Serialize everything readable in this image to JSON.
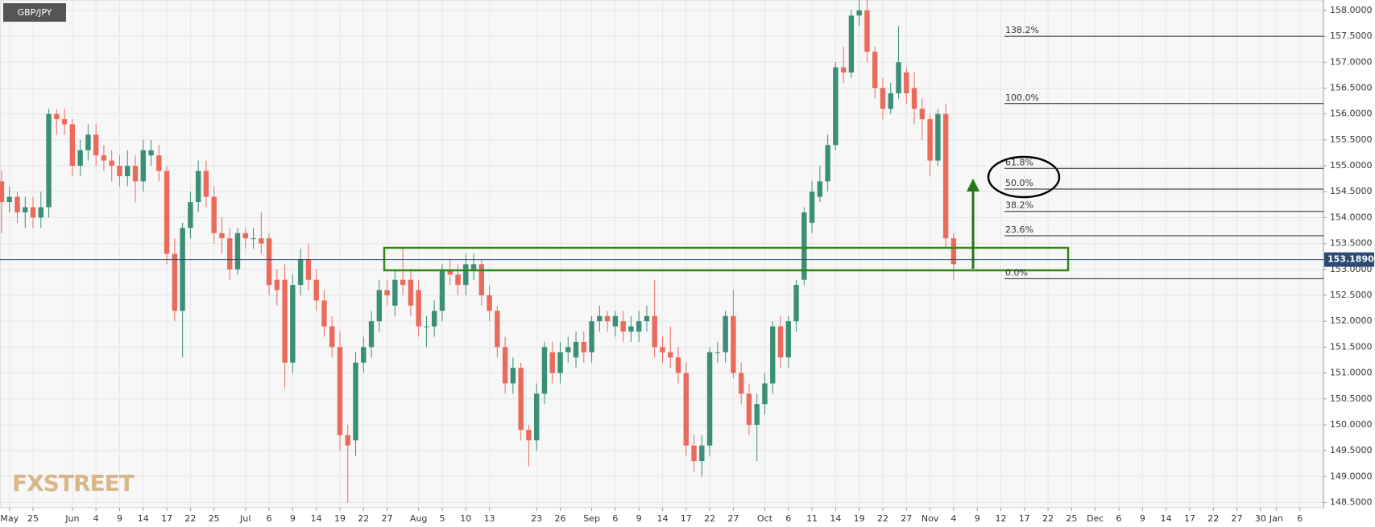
{
  "chart_data": {
    "type": "candlestick",
    "title": "GBP/JPY",
    "watermark": "FXSTREET",
    "up_color": "#3b8f77",
    "down_color": "#ea6a5c",
    "grid": true,
    "xlim": [
      -0.2,
      168
    ],
    "xticks": [
      {
        "value": 1,
        "label": "May"
      },
      {
        "value": 4,
        "label": "25"
      },
      {
        "value": 9,
        "label": "Jun"
      },
      {
        "value": 12,
        "label": "4"
      },
      {
        "value": 15,
        "label": "9"
      },
      {
        "value": 18,
        "label": "14"
      },
      {
        "value": 21,
        "label": "17"
      },
      {
        "value": 24,
        "label": "22"
      },
      {
        "value": 27,
        "label": "25"
      },
      {
        "value": 31,
        "label": "Jul"
      },
      {
        "value": 34,
        "label": "6"
      },
      {
        "value": 37,
        "label": "9"
      },
      {
        "value": 40,
        "label": "14"
      },
      {
        "value": 43,
        "label": "19"
      },
      {
        "value": 46,
        "label": "22"
      },
      {
        "value": 49,
        "label": "27"
      },
      {
        "value": 53,
        "label": "Aug"
      },
      {
        "value": 56,
        "label": "5"
      },
      {
        "value": 59,
        "label": "10"
      },
      {
        "value": 62,
        "label": "13"
      },
      {
        "value": 68,
        "label": "23"
      },
      {
        "value": 71,
        "label": "26"
      },
      {
        "value": 75,
        "label": "Sep"
      },
      {
        "value": 78,
        "label": "6"
      },
      {
        "value": 81,
        "label": "9"
      },
      {
        "value": 84,
        "label": "14"
      },
      {
        "value": 87,
        "label": "17"
      },
      {
        "value": 90,
        "label": "22"
      },
      {
        "value": 93,
        "label": "27"
      },
      {
        "value": 97,
        "label": "Oct"
      },
      {
        "value": 100,
        "label": "6"
      },
      {
        "value": 103,
        "label": "11"
      },
      {
        "value": 106,
        "label": "14"
      },
      {
        "value": 109,
        "label": "19"
      },
      {
        "value": 112,
        "label": "22"
      },
      {
        "value": 115,
        "label": "27"
      },
      {
        "value": 118,
        "label": "Nov"
      },
      {
        "value": 121,
        "label": "4"
      },
      {
        "value": 124,
        "label": "9"
      },
      {
        "value": 127,
        "label": "12"
      },
      {
        "value": 130,
        "label": "17"
      },
      {
        "value": 133,
        "label": "22"
      },
      {
        "value": 136,
        "label": "25"
      },
      {
        "value": 139,
        "label": "Dec"
      },
      {
        "value": 142,
        "label": "6"
      },
      {
        "value": 145,
        "label": "9"
      },
      {
        "value": 148,
        "label": "14"
      },
      {
        "value": 151,
        "label": "17"
      },
      {
        "value": 154,
        "label": "22"
      },
      {
        "value": 157,
        "label": "27"
      },
      {
        "value": 160,
        "label": "30"
      },
      {
        "value": 162,
        "label": "Jan"
      },
      {
        "value": 165,
        "label": "6"
      }
    ],
    "ylim": [
      148.4,
      158.2
    ],
    "yticks": [
      {
        "value": 148.5,
        "label": "148.5000"
      },
      {
        "value": 149,
        "label": "149.0000"
      },
      {
        "value": 149.5,
        "label": "149.5000"
      },
      {
        "value": 150,
        "label": "150.0000"
      },
      {
        "value": 150.5,
        "label": "150.5000"
      },
      {
        "value": 151,
        "label": "151.0000"
      },
      {
        "value": 151.5,
        "label": "151.5000"
      },
      {
        "value": 152,
        "label": "152.0000"
      },
      {
        "value": 152.5,
        "label": "152.5000"
      },
      {
        "value": 153,
        "label": "153.0000"
      },
      {
        "value": 153.5,
        "label": "153.5000"
      },
      {
        "value": 154,
        "label": "154.0000"
      },
      {
        "value": 154.5,
        "label": "154.5000"
      },
      {
        "value": 155,
        "label": "155.0000"
      },
      {
        "value": 155.5,
        "label": "155.5000"
      },
      {
        "value": 156,
        "label": "156.0000"
      },
      {
        "value": 156.5,
        "label": "156.5000"
      },
      {
        "value": 157,
        "label": "157.0000"
      },
      {
        "value": 157.5,
        "label": "157.5000"
      },
      {
        "value": 158,
        "label": "158.0000"
      }
    ],
    "current_price": {
      "value": 153.189,
      "label": "153.1890"
    },
    "fib_levels": [
      {
        "label": "138.2%",
        "value": 157.5
      },
      {
        "label": "100.0%",
        "value": 156.2
      },
      {
        "label": "61.8%",
        "value": 154.95
      },
      {
        "label": "50.0%",
        "value": 154.55
      },
      {
        "label": "38.2%",
        "value": 154.12
      },
      {
        "label": "23.6%",
        "value": 153.65
      },
      {
        "label": "0.0%",
        "value": 152.82
      }
    ],
    "open": [
      154.7,
      154.3,
      154.4,
      154.1,
      154.2,
      154.0,
      154.2,
      156.0,
      155.9,
      155.8,
      155.0,
      155.3,
      155.6,
      155.2,
      155.1,
      155.0,
      154.8,
      155.0,
      154.7,
      155.2,
      155.2,
      154.9,
      153.3,
      152.2,
      153.8,
      154.3,
      154.9,
      154.4,
      153.7,
      153.6,
      153.0,
      153.7,
      153.6,
      153.6,
      153.6,
      152.8,
      152.8,
      151.2,
      152.7,
      153.2,
      152.8,
      152.4,
      151.9,
      151.5,
      149.8,
      149.7,
      151.2,
      151.5,
      152.0,
      152.6,
      152.3,
      152.8,
      152.8,
      152.6,
      151.9,
      151.9,
      152.2,
      153.0,
      152.9,
      152.7,
      153.0,
      153.1,
      152.5,
      152.2,
      151.5,
      150.8,
      151.1,
      149.9,
      149.7,
      150.6,
      151.4,
      151.0,
      151.4,
      151.3,
      151.6,
      151.4,
      152.0,
      152.1,
      151.9,
      152.0,
      151.8,
      151.8,
      152.0,
      152.1,
      151.5,
      151.4,
      151.3,
      151.0,
      149.6,
      149.3,
      149.6,
      151.4,
      151.4,
      152.1,
      151.0,
      150.6,
      150.0,
      150.4,
      150.8,
      151.9,
      151.3,
      152.0,
      152.8,
      153.9,
      154.4,
      154.7,
      155.4,
      156.9,
      156.8,
      157.9,
      158.0,
      157.2,
      156.5,
      156.1,
      156.4,
      156.8,
      156.5,
      156.1,
      155.9,
      155.1,
      156.0,
      153.6
    ],
    "high": [
      154.9,
      154.6,
      154.5,
      154.4,
      154.4,
      154.5,
      156.1,
      156.1,
      156.1,
      155.9,
      155.5,
      155.8,
      155.8,
      155.4,
      155.3,
      155.2,
      155.3,
      155.2,
      155.5,
      155.5,
      155.4,
      155.0,
      153.6,
      153.9,
      154.5,
      155.1,
      155.1,
      154.6,
      154.0,
      153.8,
      153.8,
      153.8,
      153.8,
      154.1,
      153.7,
      153.0,
      153.1,
      152.9,
      153.4,
      153.5,
      153.0,
      152.6,
      152.1,
      151.8,
      150.0,
      151.4,
      151.7,
      152.2,
      152.8,
      152.8,
      153.0,
      153.4,
      153.0,
      152.8,
      152.1,
      152.4,
      153.1,
      153.2,
      153.1,
      153.3,
      153.3,
      153.2,
      152.7,
      152.3,
      151.7,
      151.3,
      151.2,
      150.0,
      150.8,
      151.6,
      151.6,
      151.6,
      151.7,
      151.8,
      151.8,
      152.1,
      152.3,
      152.2,
      152.2,
      152.2,
      152.1,
      152.2,
      152.3,
      152.8,
      151.7,
      151.9,
      151.5,
      151.2,
      149.8,
      149.8,
      151.5,
      151.6,
      152.2,
      152.6,
      151.2,
      150.8,
      150.6,
      151.0,
      152.0,
      152.1,
      152.1,
      152.8,
      154.2,
      154.7,
      155.0,
      155.6,
      157.0,
      157.3,
      158.0,
      158.2,
      158.2,
      157.3,
      156.7,
      156.6,
      157.7,
      156.9,
      156.8,
      156.3,
      156.0,
      156.1,
      156.2,
      153.7
    ],
    "low": [
      153.7,
      154.1,
      153.9,
      153.8,
      153.8,
      153.8,
      154.0,
      155.6,
      155.6,
      154.8,
      154.8,
      155.1,
      155.0,
      154.9,
      154.7,
      154.6,
      154.6,
      154.3,
      154.5,
      155.0,
      154.7,
      153.1,
      152.0,
      151.3,
      153.6,
      154.1,
      154.2,
      153.5,
      153.3,
      152.8,
      152.9,
      153.4,
      153.4,
      153.3,
      152.5,
      152.3,
      150.7,
      151.0,
      152.5,
      152.6,
      152.2,
      151.7,
      151.3,
      149.5,
      148.5,
      149.4,
      151.0,
      151.3,
      151.8,
      152.3,
      152.1,
      152.5,
      152.1,
      151.7,
      151.5,
      151.7,
      152.0,
      152.7,
      152.5,
      152.5,
      152.8,
      152.3,
      152.0,
      151.3,
      150.6,
      150.6,
      149.7,
      149.2,
      149.5,
      150.4,
      150.8,
      150.8,
      151.2,
      151.1,
      151.2,
      151.2,
      151.8,
      151.8,
      151.7,
      151.6,
      151.6,
      151.6,
      151.8,
      151.3,
      151.2,
      151.1,
      150.8,
      149.4,
      149.1,
      149.0,
      149.4,
      151.2,
      151.2,
      150.9,
      150.4,
      149.8,
      149.3,
      150.2,
      150.6,
      151.1,
      151.1,
      151.8,
      152.7,
      153.7,
      154.3,
      154.5,
      155.3,
      156.6,
      156.7,
      157.7,
      157.0,
      156.3,
      155.9,
      156.0,
      156.3,
      156.2,
      155.8,
      155.5,
      154.8,
      155.0,
      153.4,
      152.8
    ],
    "close": [
      154.3,
      154.4,
      154.1,
      154.2,
      154.0,
      154.2,
      156.0,
      155.9,
      155.8,
      155.0,
      155.3,
      155.6,
      155.2,
      155.1,
      155.0,
      154.8,
      155.0,
      154.7,
      155.3,
      155.3,
      154.9,
      153.3,
      152.2,
      153.8,
      154.3,
      154.9,
      154.4,
      153.7,
      153.6,
      153.0,
      153.7,
      153.6,
      153.6,
      153.5,
      152.7,
      152.6,
      151.2,
      152.7,
      153.2,
      152.8,
      152.4,
      151.9,
      151.5,
      149.8,
      149.6,
      151.2,
      151.5,
      152.0,
      152.6,
      152.5,
      152.8,
      152.7,
      152.3,
      151.9,
      151.9,
      152.2,
      153.0,
      152.9,
      152.7,
      153.1,
      153.1,
      152.5,
      152.2,
      151.5,
      150.8,
      151.1,
      149.9,
      149.7,
      150.6,
      151.5,
      151.0,
      151.4,
      151.5,
      151.6,
      151.4,
      152.0,
      152.1,
      152.0,
      152.1,
      151.8,
      151.9,
      152.0,
      152.1,
      151.5,
      151.4,
      151.3,
      151.0,
      149.6,
      149.3,
      149.6,
      151.4,
      151.4,
      152.1,
      151.0,
      150.6,
      150.0,
      150.4,
      150.8,
      151.9,
      151.3,
      152.0,
      152.7,
      154.1,
      154.5,
      154.7,
      155.4,
      156.9,
      156.8,
      157.9,
      158.0,
      157.2,
      156.5,
      156.1,
      156.4,
      157.0,
      156.4,
      156.1,
      155.9,
      155.1,
      156.0,
      153.6,
      153.1
    ]
  }
}
